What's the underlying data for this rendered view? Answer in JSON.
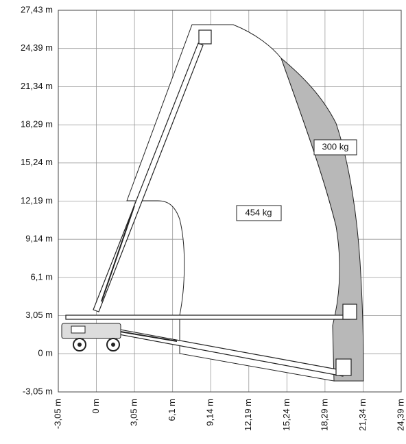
{
  "y_axis": {
    "ticks": [
      "27,43 m",
      "24,39 m",
      "21,34 m",
      "18,29 m",
      "15,24 m",
      "12,19 m",
      "9,14 m",
      "6,1 m",
      "3,05 m",
      "0 m",
      "-3,05 m"
    ]
  },
  "x_axis": {
    "ticks": [
      "-3,05 m",
      "0 m",
      "3,05 m",
      "6,1 m",
      "9,14 m",
      "12,19 m",
      "15,24 m",
      "18,29 m",
      "21,34 m",
      "24,39 m"
    ]
  },
  "zones": [
    {
      "label": "454 kg"
    },
    {
      "label": "300 kg"
    }
  ]
}
